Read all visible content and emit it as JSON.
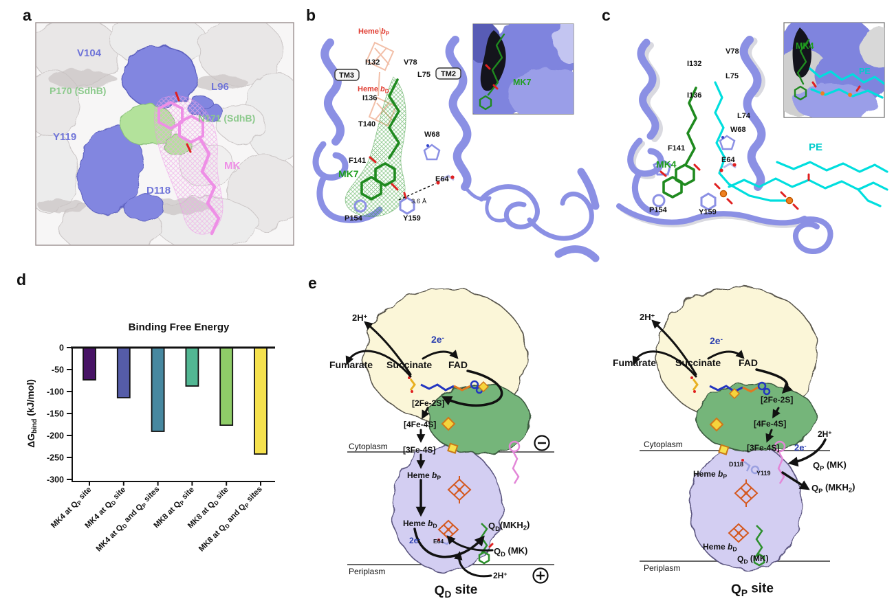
{
  "figure": {
    "panel_letters": {
      "a": "a",
      "b": "b",
      "c": "c",
      "d": "d",
      "e": "e"
    }
  },
  "colors": {
    "residue_label_blue": "#6f74d8",
    "sdhb_label_green": "#8cc98c",
    "mk_label_pink": "#ef8fe7",
    "heme_label_red": "#e03a2f",
    "mk_label_green": "#1e9e1e",
    "pe_label_cyan": "#00cccc",
    "electron_label_blue": "#2b3faf"
  },
  "panel_a": {
    "labels": {
      "v104": "V104",
      "l96": "L96",
      "p170": "P170 (SdhB)",
      "n171": "N171 (SdhB)",
      "y119": "Y119",
      "mk": "MK",
      "d118": "D118"
    }
  },
  "panel_b": {
    "labels": {
      "heme_bp": [
        "Heme ",
        {
          "t": "b",
          "m": "i"
        },
        {
          "t": "P",
          "m": "sub"
        }
      ],
      "heme_bd": [
        "Heme ",
        {
          "t": "b",
          "m": "i"
        },
        {
          "t": "D",
          "m": "sub"
        }
      ],
      "i132": "I132",
      "v78": "V78",
      "tm3": "TM3",
      "l75": "L75",
      "tm2": "TM2",
      "i136": "I136",
      "t140": "T140",
      "w68": "W68",
      "f141": "F141",
      "mk7": "MK7",
      "e64": "E64",
      "distance": "3.6 Å",
      "p154": "P154",
      "y159": "Y159",
      "inset_mk7": "MK7"
    }
  },
  "panel_c": {
    "labels": {
      "v78": "V78",
      "i132": "I132",
      "l75": "L75",
      "i136": "I136",
      "l74": "L74",
      "w68": "W68",
      "f141": "F141",
      "mk4": "MK4",
      "e64": "E64",
      "pe": "PE",
      "p154": "P154",
      "y159": "Y159",
      "inset_mk4": "MK4",
      "inset_pe": "PE"
    }
  },
  "chart_data": {
    "type": "bar",
    "title": "Binding Free Energy",
    "xlabel": "",
    "ylabel": "ΔGbind (kJ/mol)",
    "ylabel_rich": [
      "ΔG",
      {
        "t": "bind",
        "m": "sub"
      },
      " (kJ/mol)"
    ],
    "categories": [
      "MK4 at QP site",
      "MK4 at QD site",
      "MK4 at QD and QP sites",
      "MK8 at QP site",
      "MK8 at QD site",
      "MK8 at QD and QP sites"
    ],
    "categories_rich": [
      [
        "MK4 at Q",
        {
          "t": "P",
          "m": "sub"
        },
        " site"
      ],
      [
        "MK4 at Q",
        {
          "t": "D",
          "m": "sub"
        },
        " site"
      ],
      [
        "MK4 at Q",
        {
          "t": "D",
          "m": "sub"
        },
        " and Q",
        {
          "t": "P",
          "m": "sub"
        },
        " sites"
      ],
      [
        "MK8 at Q",
        {
          "t": "P",
          "m": "sub"
        },
        " site"
      ],
      [
        "MK8 at Q",
        {
          "t": "D",
          "m": "sub"
        },
        " site"
      ],
      [
        "MK8 at Q",
        {
          "t": "D",
          "m": "sub"
        },
        " and Q",
        {
          "t": "P",
          "m": "sub"
        },
        " sites"
      ]
    ],
    "values": [
      -73,
      -114,
      -190,
      -88,
      -176,
      -242
    ],
    "colors": [
      "#471365",
      "#555ca8",
      "#4788a0",
      "#52b793",
      "#8fcd68",
      "#f5e14e"
    ],
    "yticks": [
      0,
      -50,
      -100,
      -150,
      -200,
      -250,
      -300
    ],
    "ylim": [
      -300,
      0
    ],
    "grid": "off",
    "legend": "none"
  },
  "panel_e": {
    "left": {
      "h2_top": [
        "2H",
        {
          "t": "+",
          "m": "sup"
        }
      ],
      "e2_top": [
        "2e",
        {
          "t": "-",
          "m": "sup"
        }
      ],
      "fumarate": "Fumarate",
      "succinate": "Succinate",
      "fad": "FAD",
      "fe2s2": "[2Fe-2S]",
      "fe4s4": "[4Fe-4S]",
      "cytoplasm": "Cytoplasm",
      "fe3s4": "[3Fe-4S]",
      "heme_bp": [
        "Heme ",
        {
          "t": "b",
          "m": "i"
        },
        {
          "t": "P",
          "m": "sub"
        }
      ],
      "heme_bd": [
        "Heme ",
        {
          "t": "b",
          "m": "i"
        },
        {
          "t": "D",
          "m": "sub"
        }
      ],
      "e2_bottom": [
        "2e",
        {
          "t": "-",
          "m": "sup"
        }
      ],
      "e64": "E64",
      "qd_mkh2": [
        "Q",
        {
          "t": "D",
          "m": "sub"
        },
        "(MKH",
        {
          "t": "2",
          "m": "sub"
        },
        ")"
      ],
      "qd_mk": [
        "Q",
        {
          "t": "D",
          "m": "sub"
        },
        " (MK)"
      ],
      "h2_bottom": [
        "2H",
        {
          "t": "+",
          "m": "sup"
        }
      ],
      "periplasm": "Periplasm",
      "caption": [
        "Q",
        {
          "t": "D",
          "m": "sub"
        },
        " site"
      ]
    },
    "right": {
      "h2_top": [
        "2H",
        {
          "t": "+",
          "m": "sup"
        }
      ],
      "e2_top": [
        "2e",
        {
          "t": "-",
          "m": "sup"
        }
      ],
      "fumarate": "Fumarate",
      "succinate": "Succinate",
      "fad": "FAD",
      "fe2s2": "[2Fe-2S]",
      "fe4s4": "[4Fe-4S]",
      "h2_right": [
        "2H",
        {
          "t": "+",
          "m": "sup"
        }
      ],
      "cytoplasm": "Cytoplasm",
      "fe3s4": "[3Fe-4S]",
      "e2_right": [
        "2e",
        {
          "t": "-",
          "m": "sup"
        }
      ],
      "d118": "D118",
      "y119": "Y119",
      "qp_mk": [
        "Q",
        {
          "t": "P",
          "m": "sub"
        },
        " (MK)"
      ],
      "heme_bp": [
        "Heme ",
        {
          "t": "b",
          "m": "i"
        },
        {
          "t": "P",
          "m": "sub"
        }
      ],
      "qp_mkh2": [
        "Q",
        {
          "t": "P",
          "m": "sub"
        },
        " (MKH",
        {
          "t": "2",
          "m": "sub"
        },
        ")"
      ],
      "heme_bd": [
        "Heme ",
        {
          "t": "b",
          "m": "i"
        },
        {
          "t": "D",
          "m": "sub"
        }
      ],
      "qd_mk": [
        "Q",
        {
          "t": "D",
          "m": "sub"
        },
        " (MK)"
      ],
      "periplasm": "Periplasm",
      "caption": [
        "Q",
        {
          "t": "P",
          "m": "sub"
        },
        " site"
      ]
    }
  }
}
